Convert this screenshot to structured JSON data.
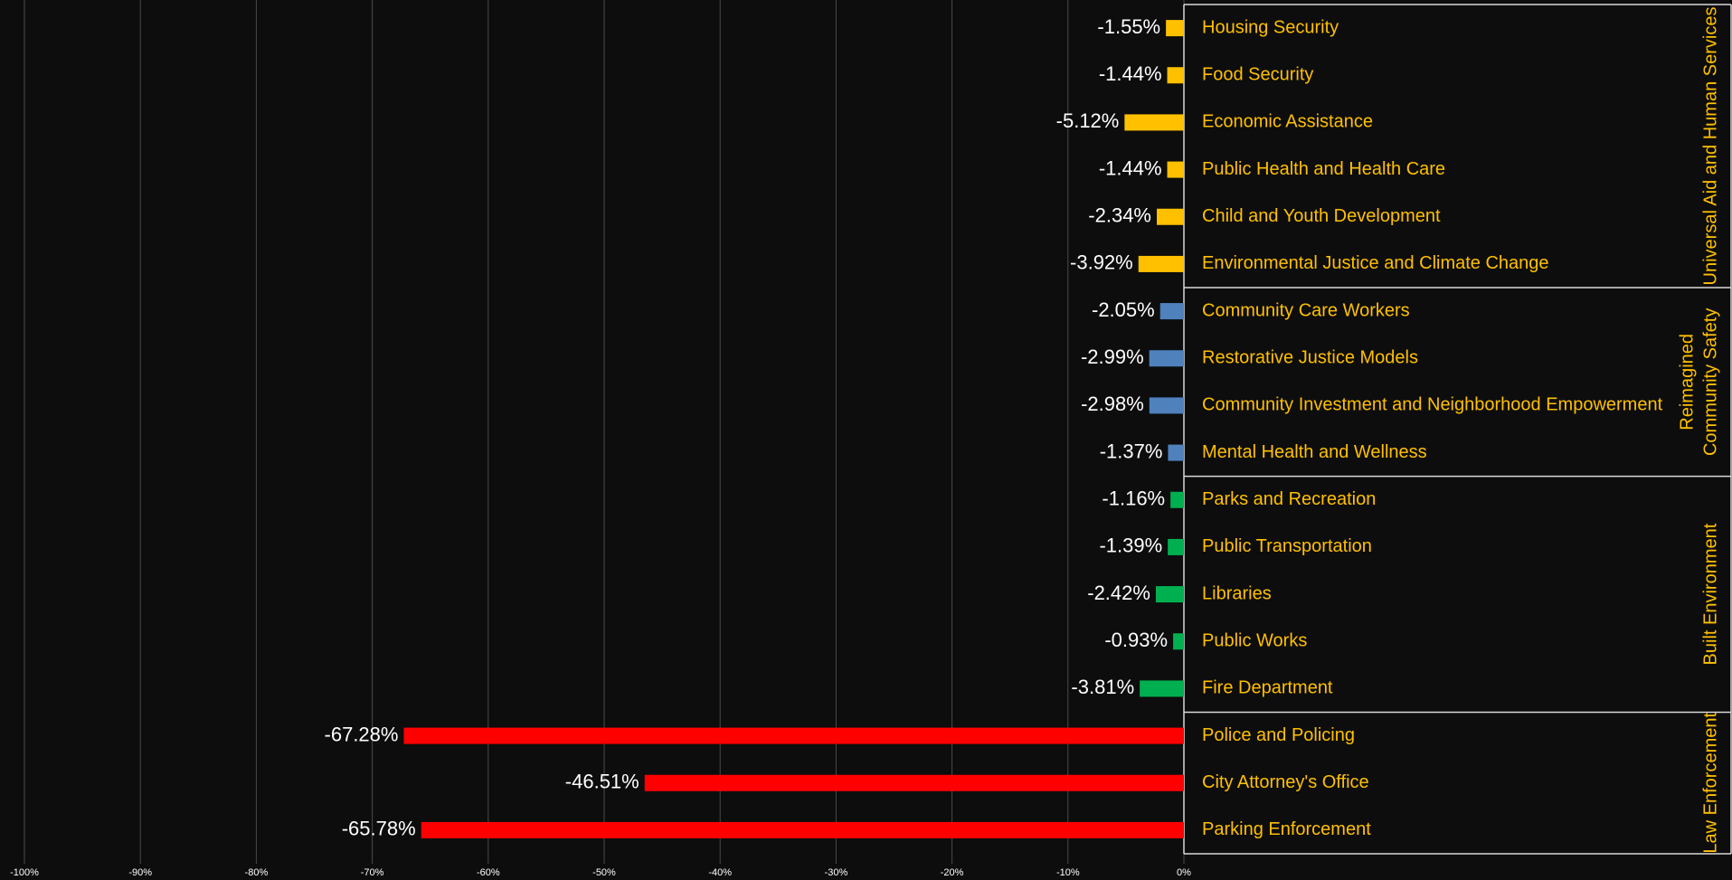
{
  "chart_data": {
    "type": "bar",
    "orientation": "horizontal",
    "groups": [
      {
        "name": [
          "Universal Aid and Human Services"
        ],
        "color": "#ffc000",
        "categories": [
          "Housing Security",
          "Food Security",
          "Economic Assistance",
          "Public Health and Health Care",
          "Child and Youth Development",
          "Environmental Justice and Climate Change"
        ],
        "values": [
          -1.55,
          -1.44,
          -5.12,
          -1.44,
          -2.34,
          -3.92
        ],
        "value_labels": [
          "-1.55%",
          "-1.44%",
          "-5.12%",
          "-1.44%",
          "-2.34%",
          "-3.92%"
        ]
      },
      {
        "name": [
          "Reimagined",
          "Community Safety"
        ],
        "color": "#4f81bd",
        "categories": [
          "Community Care Workers",
          "Restorative Justice Models",
          "Community Investment and Neighborhood Empowerment",
          "Mental Health and Wellness"
        ],
        "values": [
          -2.05,
          -2.99,
          -2.98,
          -1.37
        ],
        "value_labels": [
          "-2.05%",
          "-2.99%",
          "-2.98%",
          "-1.37%"
        ]
      },
      {
        "name": [
          "Built Environment"
        ],
        "color": "#00b050",
        "categories": [
          "Parks and Recreation",
          "Public Transportation",
          "Libraries",
          "Public Works",
          "Fire Department"
        ],
        "values": [
          -1.16,
          -1.39,
          -2.42,
          -0.93,
          -3.81
        ],
        "value_labels": [
          "-1.16%",
          "-1.39%",
          "-2.42%",
          "-0.93%",
          "-3.81%"
        ]
      },
      {
        "name": [
          "Law Enforcement"
        ],
        "color": "#ff0000",
        "categories": [
          "Police and Policing",
          "City Attorney's Office",
          "Parking Enforcement"
        ],
        "values": [
          -67.28,
          -46.51,
          -65.78
        ],
        "value_labels": [
          "-67.28%",
          "-46.51%",
          "-65.78%"
        ]
      }
    ],
    "xlim": [
      -100,
      0
    ],
    "xticks": [
      {
        "value": -100,
        "label": "-100%"
      },
      {
        "value": -90,
        "label": "-90%"
      },
      {
        "value": -80,
        "label": "-80%"
      },
      {
        "value": -70,
        "label": "-70%"
      },
      {
        "value": -60,
        "label": "-60%"
      },
      {
        "value": -50,
        "label": "-50%"
      },
      {
        "value": -40,
        "label": "-40%"
      },
      {
        "value": -30,
        "label": "-30%"
      },
      {
        "value": -20,
        "label": "-20%"
      },
      {
        "value": -10,
        "label": "-10%"
      },
      {
        "value": 0,
        "label": "0%"
      }
    ],
    "grid": true,
    "label_color": "#ffc000"
  }
}
